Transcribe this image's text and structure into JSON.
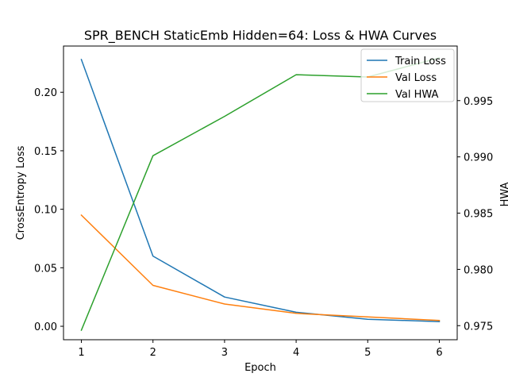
{
  "chart_data": {
    "type": "line",
    "title": "SPR_BENCH StaticEmb Hidden=64: Loss & HWA Curves",
    "xlabel": "Epoch",
    "ylabel_left": "CrossEntropy Loss",
    "ylabel_right": "HWA",
    "x": [
      1,
      2,
      3,
      4,
      5,
      6
    ],
    "x_ticks": [
      "1",
      "2",
      "3",
      "4",
      "5",
      "6"
    ],
    "xlim": [
      0.75,
      6.25
    ],
    "ylim_left": [
      -0.0115,
      0.2395
    ],
    "y_ticks_left": [
      "0.00",
      "0.05",
      "0.10",
      "0.15",
      "0.20"
    ],
    "y_tick_values_left": [
      0.0,
      0.05,
      0.1,
      0.15,
      0.2
    ],
    "ylim_right": [
      0.97375,
      0.99985
    ],
    "y_ticks_right": [
      "0.975",
      "0.980",
      "0.985",
      "0.990",
      "0.995"
    ],
    "y_tick_values_right": [
      0.975,
      0.98,
      0.985,
      0.99,
      0.995
    ],
    "series": [
      {
        "name": "Train Loss",
        "axis": "left",
        "color": "#1f77b4",
        "values": [
          0.228,
          0.06,
          0.025,
          0.012,
          0.006,
          0.004
        ]
      },
      {
        "name": "Val Loss",
        "axis": "left",
        "color": "#ff7f0e",
        "values": [
          0.095,
          0.035,
          0.019,
          0.011,
          0.008,
          0.005
        ]
      },
      {
        "name": "Val HWA",
        "axis": "right",
        "color": "#2ca02c",
        "values": [
          0.9746,
          0.9901,
          0.9936,
          0.9973,
          0.9971,
          0.9988
        ]
      }
    ],
    "legend": {
      "position": "top-right",
      "entries": [
        "Train Loss",
        "Val Loss",
        "Val HWA"
      ]
    },
    "grid": false
  }
}
